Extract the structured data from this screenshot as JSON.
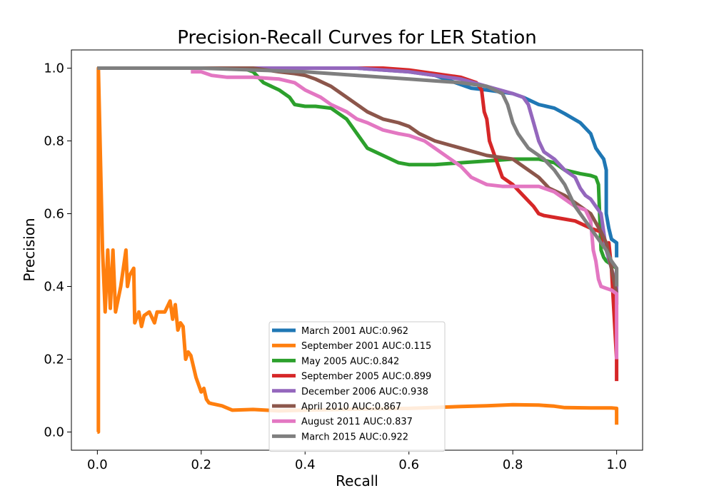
{
  "chart_data": {
    "type": "line",
    "title": "Precision-Recall Curves for LER Station",
    "xlabel": "Recall",
    "ylabel": "Precision",
    "xlim": [
      -0.05,
      1.05
    ],
    "ylim": [
      -0.05,
      1.05
    ],
    "x_ticks": [
      "0.0",
      "0.2",
      "0.4",
      "0.6",
      "0.8",
      "1.0"
    ],
    "y_ticks": [
      "0.0",
      "0.2",
      "0.4",
      "0.6",
      "0.8",
      "1.0"
    ],
    "grid": false,
    "legend_position": "lower-center",
    "series": [
      {
        "name": "March 2001 AUC:0.962",
        "color": "#1f77b4",
        "x": [
          0.0,
          0.1,
          0.2,
          0.3,
          0.4,
          0.5,
          0.6,
          0.65,
          0.7,
          0.72,
          0.75,
          0.8,
          0.82,
          0.85,
          0.88,
          0.9,
          0.93,
          0.95,
          0.96,
          0.97,
          0.975,
          0.98,
          0.98,
          0.985,
          0.99,
          1.0,
          1.0
        ],
        "y": [
          1.0,
          1.0,
          1.0,
          1.0,
          1.0,
          1.0,
          0.99,
          0.98,
          0.955,
          0.945,
          0.94,
          0.93,
          0.92,
          0.9,
          0.89,
          0.875,
          0.85,
          0.82,
          0.78,
          0.76,
          0.75,
          0.72,
          0.6,
          0.56,
          0.53,
          0.52,
          0.48
        ]
      },
      {
        "name": "September 2001 AUC:0.115",
        "color": "#ff7f0e",
        "x": [
          0.0,
          0.002,
          0.002,
          0.01,
          0.015,
          0.02,
          0.025,
          0.03,
          0.035,
          0.045,
          0.055,
          0.058,
          0.062,
          0.07,
          0.072,
          0.08,
          0.085,
          0.09,
          0.1,
          0.11,
          0.115,
          0.13,
          0.14,
          0.145,
          0.15,
          0.155,
          0.16,
          0.165,
          0.17,
          0.175,
          0.18,
          0.185,
          0.19,
          0.2,
          0.205,
          0.21,
          0.215,
          0.22,
          0.24,
          0.26,
          0.3,
          0.35,
          0.4,
          0.5,
          0.6,
          0.7,
          0.75,
          0.8,
          0.85,
          0.88,
          0.9,
          0.95,
          0.99,
          1.0,
          1.0
        ],
        "y": [
          0.0,
          0.0,
          1.0,
          0.5,
          0.33,
          0.5,
          0.34,
          0.5,
          0.33,
          0.4,
          0.5,
          0.4,
          0.43,
          0.45,
          0.3,
          0.33,
          0.29,
          0.32,
          0.33,
          0.3,
          0.33,
          0.33,
          0.36,
          0.31,
          0.35,
          0.28,
          0.3,
          0.29,
          0.2,
          0.22,
          0.21,
          0.18,
          0.15,
          0.11,
          0.12,
          0.09,
          0.08,
          0.078,
          0.072,
          0.06,
          0.062,
          0.058,
          0.06,
          0.063,
          0.065,
          0.07,
          0.072,
          0.075,
          0.074,
          0.071,
          0.067,
          0.066,
          0.066,
          0.065,
          0.02
        ]
      },
      {
        "name": "May 2005 AUC:0.842",
        "color": "#2ca02c",
        "x": [
          0.0,
          0.1,
          0.2,
          0.28,
          0.3,
          0.32,
          0.35,
          0.37,
          0.38,
          0.4,
          0.42,
          0.45,
          0.48,
          0.5,
          0.52,
          0.55,
          0.58,
          0.6,
          0.62,
          0.65,
          0.7,
          0.75,
          0.8,
          0.85,
          0.88,
          0.9,
          0.93,
          0.95,
          0.96,
          0.965,
          0.97,
          0.975,
          0.98,
          0.99,
          1.0,
          1.0
        ],
        "y": [
          1.0,
          1.0,
          1.0,
          1.0,
          0.99,
          0.96,
          0.94,
          0.92,
          0.9,
          0.895,
          0.895,
          0.89,
          0.86,
          0.82,
          0.78,
          0.76,
          0.74,
          0.735,
          0.735,
          0.735,
          0.74,
          0.745,
          0.75,
          0.75,
          0.74,
          0.72,
          0.71,
          0.705,
          0.7,
          0.68,
          0.5,
          0.48,
          0.47,
          0.46,
          0.45,
          0.4
        ]
      },
      {
        "name": "September 2005 AUC:0.899",
        "color": "#d62728",
        "x": [
          0.0,
          0.1,
          0.2,
          0.3,
          0.4,
          0.5,
          0.55,
          0.6,
          0.65,
          0.7,
          0.73,
          0.74,
          0.745,
          0.75,
          0.755,
          0.76,
          0.765,
          0.78,
          0.8,
          0.82,
          0.84,
          0.85,
          0.86,
          0.88,
          0.9,
          0.92,
          0.95,
          0.97,
          0.98,
          0.985,
          0.99,
          1.0,
          1.0
        ],
        "y": [
          1.0,
          1.0,
          1.0,
          1.0,
          1.0,
          1.0,
          1.0,
          0.995,
          0.985,
          0.975,
          0.96,
          0.94,
          0.88,
          0.86,
          0.8,
          0.78,
          0.76,
          0.7,
          0.68,
          0.65,
          0.62,
          0.6,
          0.595,
          0.59,
          0.585,
          0.58,
          0.56,
          0.55,
          0.5,
          0.52,
          0.45,
          0.2,
          0.14
        ]
      },
      {
        "name": "December 2006 AUC:0.938",
        "color": "#9467bd",
        "x": [
          0.0,
          0.1,
          0.2,
          0.3,
          0.4,
          0.5,
          0.55,
          0.6,
          0.65,
          0.7,
          0.75,
          0.8,
          0.82,
          0.83,
          0.84,
          0.85,
          0.86,
          0.88,
          0.9,
          0.92,
          0.93,
          0.94,
          0.95,
          0.96,
          0.97,
          0.975,
          0.98,
          0.99,
          1.0,
          1.0
        ],
        "y": [
          1.0,
          1.0,
          1.0,
          1.0,
          1.0,
          1.0,
          0.995,
          0.99,
          0.98,
          0.97,
          0.95,
          0.93,
          0.92,
          0.9,
          0.85,
          0.8,
          0.77,
          0.75,
          0.72,
          0.7,
          0.67,
          0.65,
          0.64,
          0.62,
          0.6,
          0.55,
          0.5,
          0.45,
          0.4,
          0.38
        ]
      },
      {
        "name": "April 2010 AUC:0.867",
        "color": "#8c564b",
        "x": [
          0.0,
          0.1,
          0.2,
          0.3,
          0.35,
          0.38,
          0.4,
          0.42,
          0.45,
          0.48,
          0.5,
          0.52,
          0.55,
          0.58,
          0.6,
          0.62,
          0.65,
          0.7,
          0.75,
          0.8,
          0.82,
          0.85,
          0.87,
          0.9,
          0.92,
          0.95,
          0.97,
          0.98,
          0.99,
          1.0,
          1.0
        ],
        "y": [
          1.0,
          1.0,
          1.0,
          1.0,
          0.99,
          0.985,
          0.98,
          0.97,
          0.95,
          0.92,
          0.9,
          0.88,
          0.86,
          0.85,
          0.84,
          0.82,
          0.8,
          0.78,
          0.76,
          0.75,
          0.73,
          0.7,
          0.67,
          0.65,
          0.63,
          0.6,
          0.55,
          0.52,
          0.45,
          0.38,
          0.35
        ]
      },
      {
        "name": "August 2011 AUC:0.837",
        "color": "#e377c2",
        "x": [
          0.18,
          0.2,
          0.22,
          0.25,
          0.3,
          0.35,
          0.38,
          0.4,
          0.43,
          0.45,
          0.48,
          0.5,
          0.52,
          0.55,
          0.58,
          0.6,
          0.63,
          0.65,
          0.68,
          0.7,
          0.72,
          0.75,
          0.78,
          0.8,
          0.85,
          0.88,
          0.9,
          0.92,
          0.94,
          0.95,
          0.955,
          0.96,
          0.965,
          0.97,
          0.98,
          0.99,
          1.0,
          1.0,
          1.0
        ],
        "y": [
          0.99,
          0.99,
          0.98,
          0.975,
          0.975,
          0.97,
          0.96,
          0.94,
          0.92,
          0.9,
          0.88,
          0.86,
          0.85,
          0.83,
          0.82,
          0.815,
          0.8,
          0.78,
          0.75,
          0.73,
          0.7,
          0.68,
          0.675,
          0.675,
          0.675,
          0.66,
          0.64,
          0.62,
          0.61,
          0.58,
          0.5,
          0.47,
          0.42,
          0.4,
          0.395,
          0.39,
          0.38,
          0.3,
          0.2
        ]
      },
      {
        "name": "March 2015 AUC:0.922",
        "color": "#7f7f7f",
        "x": [
          0.0,
          0.1,
          0.2,
          0.3,
          0.4,
          0.5,
          0.55,
          0.6,
          0.65,
          0.7,
          0.75,
          0.78,
          0.79,
          0.8,
          0.81,
          0.82,
          0.83,
          0.84,
          0.86,
          0.88,
          0.9,
          0.91,
          0.92,
          0.93,
          0.95,
          0.97,
          0.98,
          0.99,
          1.0,
          1.0
        ],
        "y": [
          1.0,
          1.0,
          1.0,
          0.995,
          0.99,
          0.98,
          0.975,
          0.97,
          0.965,
          0.96,
          0.95,
          0.93,
          0.9,
          0.85,
          0.82,
          0.8,
          0.78,
          0.77,
          0.75,
          0.72,
          0.68,
          0.65,
          0.62,
          0.6,
          0.56,
          0.52,
          0.5,
          0.47,
          0.45,
          0.4
        ]
      }
    ]
  }
}
